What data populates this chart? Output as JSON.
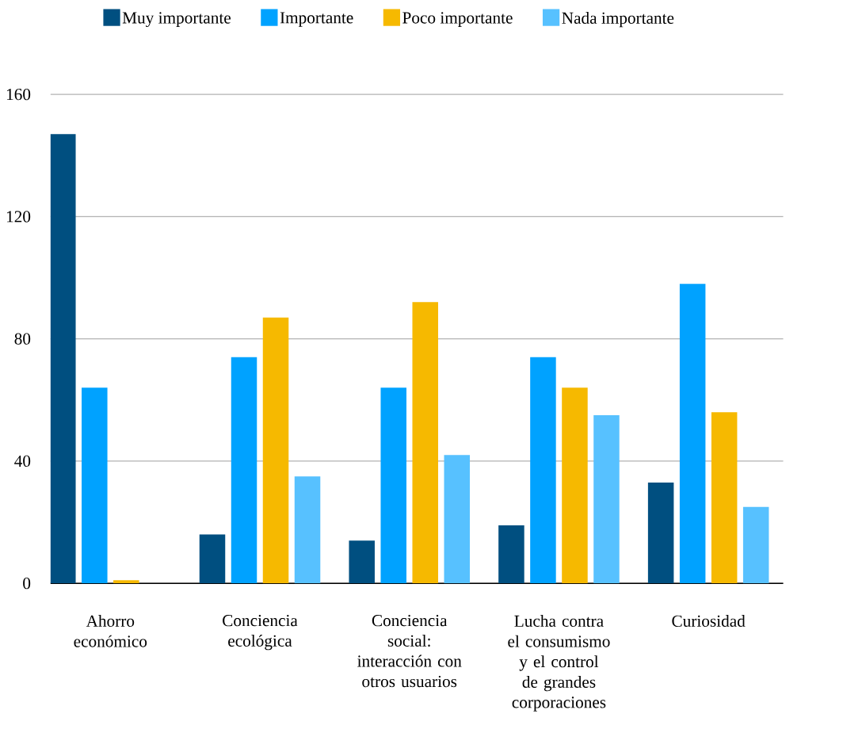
{
  "chart_data": {
    "type": "bar",
    "categories": [
      "Ahorro económico",
      "Conciencia ecológica",
      "Conciencia social: interacción con otros usuarios",
      "Lucha contra el consumismo y el control de grandes corporaciones",
      "Curiosidad"
    ],
    "series": [
      {
        "name": "Muy importante",
        "color": "#004f80",
        "values": [
          147,
          16,
          14,
          19,
          33
        ]
      },
      {
        "name": "Importante",
        "color": "#00a2ff",
        "values": [
          64,
          74,
          64,
          74,
          98
        ]
      },
      {
        "name": "Poco importante",
        "color": "#f6b900",
        "values": [
          1,
          87,
          92,
          64,
          56
        ]
      },
      {
        "name": "Nada importante",
        "color": "#57c1ff",
        "values": [
          0,
          35,
          42,
          55,
          25
        ]
      }
    ],
    "ylim": [
      0,
      160
    ],
    "yticks": [
      0,
      40,
      80,
      120,
      160
    ],
    "grid": "y",
    "legend": "top"
  }
}
